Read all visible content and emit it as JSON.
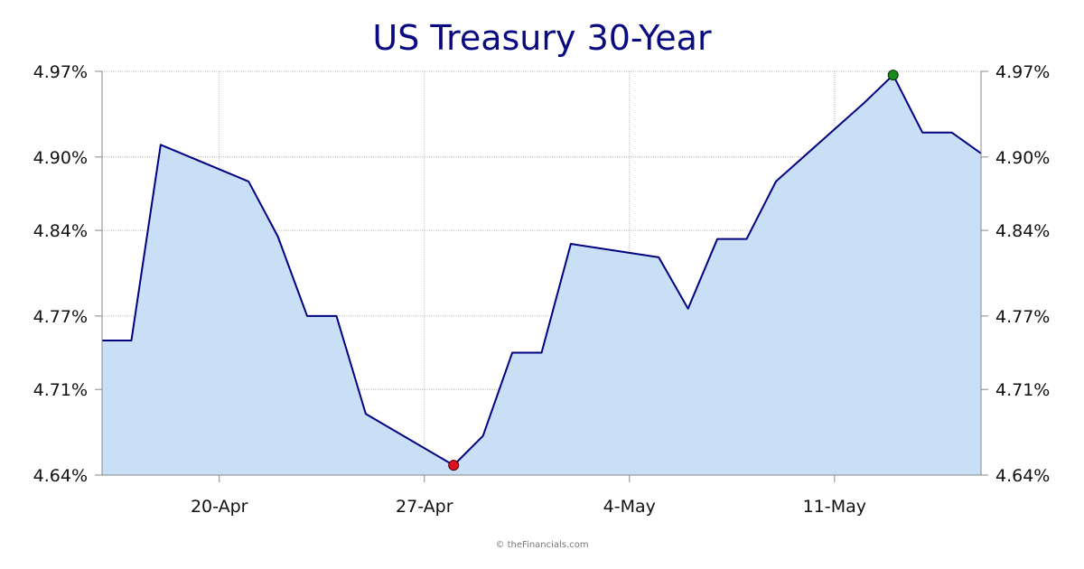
{
  "chart_data": {
    "type": "area",
    "title": "US Treasury 30-Year",
    "xlabel": "",
    "ylabel": "",
    "ylim": [
      4.64,
      4.97
    ],
    "y_ticks": [
      4.64,
      4.71,
      4.77,
      4.84,
      4.9,
      4.97
    ],
    "y_tick_labels": [
      "4.64%",
      "4.71%",
      "4.77%",
      "4.84%",
      "4.90%",
      "4.97%"
    ],
    "x_ticks": [
      "2024-04-20",
      "2024-04-27",
      "2024-05-04",
      "2024-05-11"
    ],
    "x_tick_labels": [
      "20-Apr",
      "27-Apr",
      "4-May",
      "11-May"
    ],
    "x_range": [
      "2024-04-16",
      "2024-05-16"
    ],
    "grid": true,
    "fill_color": "#c9dff6",
    "line_color": "#000080",
    "series": [
      {
        "points": [
          {
            "x": "2024-04-16",
            "y": 4.75
          },
          {
            "x": "2024-04-17",
            "y": 4.75
          },
          {
            "x": "2024-04-18",
            "y": 4.91
          },
          {
            "x": "2024-04-21",
            "y": 4.88
          },
          {
            "x": "2024-04-22",
            "y": 4.835
          },
          {
            "x": "2024-04-23",
            "y": 4.77
          },
          {
            "x": "2024-04-24",
            "y": 4.77
          },
          {
            "x": "2024-04-25",
            "y": 4.69
          },
          {
            "x": "2024-04-28",
            "y": 4.648
          },
          {
            "x": "2024-04-29",
            "y": 4.672
          },
          {
            "x": "2024-04-30",
            "y": 4.74
          },
          {
            "x": "2024-05-01",
            "y": 4.74
          },
          {
            "x": "2024-05-02",
            "y": 4.829
          },
          {
            "x": "2024-05-05",
            "y": 4.818
          },
          {
            "x": "2024-05-06",
            "y": 4.776
          },
          {
            "x": "2024-05-07",
            "y": 4.833
          },
          {
            "x": "2024-05-08",
            "y": 4.833
          },
          {
            "x": "2024-05-09",
            "y": 4.88
          },
          {
            "x": "2024-05-12",
            "y": 4.944
          },
          {
            "x": "2024-05-13",
            "y": 4.967
          },
          {
            "x": "2024-05-14",
            "y": 4.92
          },
          {
            "x": "2024-05-15",
            "y": 4.92
          },
          {
            "x": "2024-05-16",
            "y": 4.903
          }
        ]
      }
    ],
    "markers": {
      "min": {
        "x": "2024-04-28",
        "y": 4.648,
        "color": "#e01020"
      },
      "max": {
        "x": "2024-05-13",
        "y": 4.967,
        "color": "#1a8a1a"
      }
    }
  },
  "credit": "© theFinancials.com"
}
